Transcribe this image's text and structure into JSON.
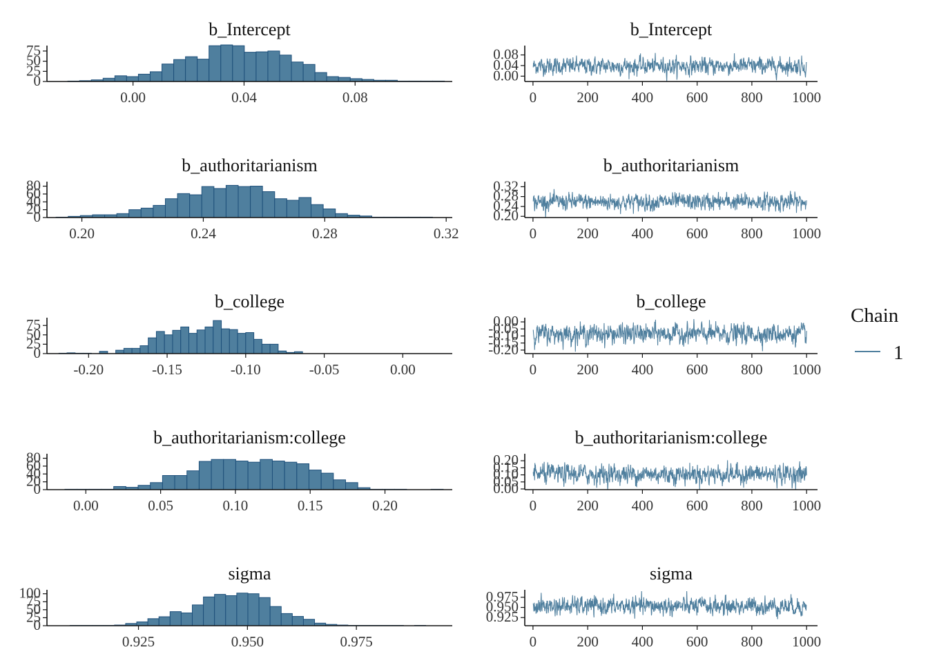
{
  "colors": {
    "fill": "#4f7f9e",
    "bar_stroke": "#1d4f7a",
    "trace": "#4f7f9e",
    "axis": "#111111"
  },
  "legend": {
    "title": "Chain",
    "items": [
      "1"
    ]
  },
  "chart_data": [
    {
      "type": "bar",
      "panel": "histogram",
      "title": "b_Intercept",
      "x_ticks": [
        "0.00",
        "0.04",
        "0.08"
      ],
      "x_tick_values": [
        0.0,
        0.04,
        0.08
      ],
      "xlim": [
        -0.031,
        0.115
      ],
      "y_ticks": [
        "0",
        "25",
        "50",
        "75"
      ],
      "y_tick_values": [
        0,
        25,
        50,
        75
      ],
      "ylim": [
        0,
        85
      ],
      "bin_start": -0.0235,
      "bin_width": 0.00424,
      "values": [
        1,
        2,
        4,
        8,
        14,
        12,
        18,
        24,
        43,
        54,
        61,
        55,
        88,
        90,
        88,
        72,
        73,
        75,
        65,
        48,
        42,
        22,
        12,
        10,
        7,
        5,
        3,
        3,
        1,
        1,
        1,
        1
      ]
    },
    {
      "type": "line",
      "panel": "trace",
      "title": "b_Intercept",
      "x_ticks": [
        "0",
        "200",
        "400",
        "600",
        "800",
        "1000"
      ],
      "x_tick_values": [
        0,
        200,
        400,
        600,
        800,
        1000
      ],
      "xlim": [
        -30,
        1040
      ],
      "y_ticks": [
        "0.00",
        "0.04",
        "0.08"
      ],
      "y_tick_values": [
        0.0,
        0.04,
        0.08
      ],
      "ylim": [
        -0.02,
        0.11
      ],
      "n_iter": 1000,
      "mean": 0.038,
      "sd": 0.016
    },
    {
      "type": "bar",
      "panel": "histogram",
      "title": "b_authoritarianism",
      "x_ticks": [
        "0.20",
        "0.24",
        "0.28",
        "0.32"
      ],
      "x_tick_values": [
        0.2,
        0.24,
        0.28,
        0.32
      ],
      "xlim": [
        0.1885,
        0.322
      ],
      "y_ticks": [
        "0",
        "20",
        "40",
        "60",
        "80"
      ],
      "y_tick_values": [
        0,
        20,
        40,
        60,
        80
      ],
      "ylim": [
        0,
        88
      ],
      "bin_start": 0.1915,
      "bin_width": 0.004,
      "values": [
        1,
        3,
        5,
        7,
        7,
        10,
        20,
        24,
        31,
        48,
        61,
        58,
        79,
        74,
        82,
        79,
        80,
        66,
        48,
        44,
        51,
        33,
        22,
        10,
        6,
        4,
        1,
        1,
        1,
        1,
        1
      ]
    },
    {
      "type": "line",
      "panel": "trace",
      "title": "b_authoritarianism",
      "x_ticks": [
        "0",
        "200",
        "400",
        "600",
        "800",
        "1000"
      ],
      "x_tick_values": [
        0,
        200,
        400,
        600,
        800,
        1000
      ],
      "xlim": [
        -30,
        1040
      ],
      "y_ticks": [
        "0.20",
        "0.24",
        "0.28",
        "0.32"
      ],
      "y_tick_values": [
        0.2,
        0.24,
        0.28,
        0.32
      ],
      "ylim": [
        0.195,
        0.335
      ],
      "n_iter": 1000,
      "mean": 0.258,
      "sd": 0.017
    },
    {
      "type": "bar",
      "panel": "histogram",
      "title": "b_college",
      "x_ticks": [
        "-0.20",
        "-0.15",
        "-0.10",
        "-0.05",
        "0.00"
      ],
      "x_tick_values": [
        -0.2,
        -0.15,
        -0.1,
        -0.05,
        0.0
      ],
      "xlim": [
        -0.2265,
        0.0315
      ],
      "bin_start": -0.2189,
      "bin_width": 0.00517,
      "y_ticks": [
        "0",
        "25",
        "50",
        "75"
      ],
      "y_tick_values": [
        0,
        25,
        50,
        75
      ],
      "ylim": [
        0,
        92
      ],
      "values": [
        1,
        2,
        1,
        1,
        0,
        6,
        0,
        9,
        14,
        14,
        21,
        42,
        59,
        50,
        62,
        71,
        54,
        63,
        71,
        88,
        66,
        64,
        54,
        56,
        38,
        25,
        25,
        7,
        3,
        5
      ]
    },
    {
      "type": "line",
      "panel": "trace",
      "title": "b_college",
      "x_ticks": [
        "0",
        "200",
        "400",
        "600",
        "800",
        "1000"
      ],
      "x_tick_values": [
        0,
        200,
        400,
        600,
        800,
        1000
      ],
      "xlim": [
        -30,
        1040
      ],
      "y_ticks": [
        "-0.20",
        "-0.15",
        "-0.10",
        "-0.05",
        "0.00"
      ],
      "y_tick_values": [
        -0.2,
        -0.15,
        -0.1,
        -0.05,
        0.0
      ],
      "ylim": [
        -0.225,
        0.02
      ],
      "n_iter": 1000,
      "mean": -0.085,
      "sd": 0.035
    },
    {
      "type": "bar",
      "panel": "histogram",
      "title": "b_authoritarianism:college",
      "x_ticks": [
        "0.00",
        "0.05",
        "0.10",
        "0.15",
        "0.20"
      ],
      "x_tick_values": [
        0.0,
        0.05,
        0.1,
        0.15,
        0.2
      ],
      "xlim": [
        -0.026,
        0.245
      ],
      "y_ticks": [
        "0",
        "20",
        "40",
        "60",
        "80"
      ],
      "y_tick_values": [
        0,
        20,
        40,
        60,
        80
      ],
      "ylim": [
        0,
        88
      ],
      "bin_start": -0.014,
      "bin_width": 0.00816,
      "values": [
        1,
        1,
        1,
        1,
        8,
        6,
        11,
        18,
        36,
        36,
        48,
        72,
        77,
        77,
        73,
        70,
        77,
        73,
        70,
        66,
        50,
        42,
        25,
        18,
        5,
        1,
        1,
        1,
        0,
        0,
        1
      ]
    },
    {
      "type": "line",
      "panel": "trace",
      "title": "b_authoritarianism:college",
      "x_ticks": [
        "0",
        "200",
        "400",
        "600",
        "800",
        "1000"
      ],
      "x_tick_values": [
        0,
        200,
        400,
        600,
        800,
        1000
      ],
      "xlim": [
        -30,
        1040
      ],
      "y_ticks": [
        "0.00",
        "0.05",
        "0.10",
        "0.15",
        "0.20"
      ],
      "y_tick_values": [
        0.0,
        0.05,
        0.1,
        0.15,
        0.2
      ],
      "ylim": [
        -0.005,
        0.24
      ],
      "n_iter": 1000,
      "mean": 0.105,
      "sd": 0.035
    },
    {
      "type": "bar",
      "panel": "histogram",
      "title": "sigma",
      "x_ticks": [
        "0.925",
        "0.950",
        "0.975"
      ],
      "x_tick_values": [
        0.925,
        0.95,
        0.975
      ],
      "xlim": [
        0.904,
        0.997
      ],
      "y_ticks": [
        "0",
        "25",
        "50",
        "75",
        "100"
      ],
      "y_tick_values": [
        0,
        25,
        50,
        75,
        100
      ],
      "ylim": [
        0,
        108
      ],
      "bin_start": 0.9093,
      "bin_width": 0.00255,
      "values": [
        1,
        1,
        1,
        1,
        2,
        7,
        12,
        22,
        28,
        44,
        40,
        65,
        90,
        98,
        94,
        102,
        100,
        88,
        60,
        38,
        29,
        20,
        8,
        4,
        2,
        1,
        1,
        1,
        1,
        1,
        0,
        1
      ]
    },
    {
      "type": "line",
      "panel": "trace",
      "title": "sigma",
      "x_ticks": [
        "0",
        "200",
        "400",
        "600",
        "800",
        "1000"
      ],
      "x_tick_values": [
        0,
        200,
        400,
        600,
        800,
        1000
      ],
      "xlim": [
        -30,
        1040
      ],
      "y_ticks": [
        "0.925",
        "0.950",
        "0.975"
      ],
      "y_tick_values": [
        0.925,
        0.95,
        0.975
      ],
      "ylim": [
        0.905,
        0.99
      ],
      "n_iter": 1000,
      "mean": 0.953,
      "sd": 0.011
    }
  ]
}
